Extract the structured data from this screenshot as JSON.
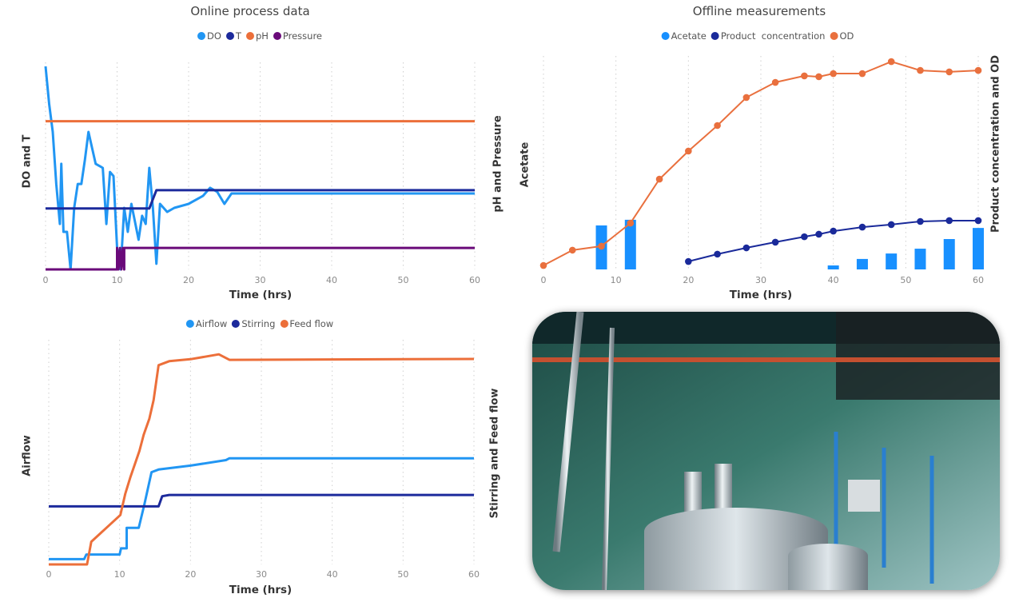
{
  "chart_data": [
    {
      "type": "line",
      "title": "Online process data",
      "xlabel": "Time (hrs)",
      "ylabel": "DO and T",
      "ylabel_right": "pH and Pressure",
      "xlim": [
        0,
        60
      ],
      "xticks": [
        "0",
        "10",
        "20",
        "30",
        "40",
        "50",
        "60"
      ],
      "ylim": [
        0,
        100
      ],
      "y_tick_labels_shown": false,
      "grid": "vertical dotted",
      "legend": "top-center",
      "series": [
        {
          "name": "DO",
          "color": "#2196f3",
          "axis": "left",
          "x": [
            0,
            0.5,
            1,
            1.5,
            2,
            2.2,
            2.5,
            3,
            3.5,
            4,
            4.5,
            5,
            5.5,
            6,
            6.5,
            7,
            8,
            8.5,
            9,
            9.5,
            10,
            10.5,
            11,
            11.5,
            12,
            13,
            13.5,
            14,
            14.5,
            15,
            15.5,
            16,
            17,
            18,
            20,
            22,
            23,
            24,
            25,
            26,
            60
          ],
          "y": [
            100,
            81.5,
            67.7,
            42.1,
            22.4,
            52,
            18.5,
            18.5,
            0,
            30.3,
            42.1,
            42.1,
            53.9,
            67.7,
            59.8,
            52,
            50,
            22.4,
            48,
            46,
            10.6,
            0,
            30.3,
            18.5,
            32.3,
            14.6,
            26.4,
            22.4,
            50,
            30.3,
            2.8,
            32.3,
            28.3,
            30.3,
            32.3,
            36.2,
            40.2,
            38.2,
            32.3,
            37.4,
            37.4
          ]
        },
        {
          "name": "T",
          "color": "#1c2a9c",
          "axis": "left",
          "x": [
            0,
            14.5,
            15.5,
            60
          ],
          "y": [
            30,
            30,
            39,
            39
          ]
        },
        {
          "name": "pH",
          "color": "#ec6f3a",
          "axis": "right",
          "x": [
            0,
            60
          ],
          "y": [
            73,
            73
          ]
        },
        {
          "name": "Pressure",
          "color": "#6a0a7a",
          "axis": "right",
          "x": [
            0,
            10,
            10,
            10.2,
            10.4,
            10.6,
            10.8,
            11,
            11,
            60
          ],
          "y": [
            0,
            0,
            10.6,
            0,
            10.6,
            0,
            10.6,
            0,
            10.6,
            10.6
          ]
        }
      ]
    },
    {
      "type": "bar+line",
      "title": "Offline measurements",
      "xlabel": "Time (hrs)",
      "ylabel": "Acetate",
      "ylabel_right": "Product concentration and OD",
      "xlim": [
        0,
        60
      ],
      "xticks": [
        "0",
        "10",
        "20",
        "30",
        "40",
        "50",
        "60"
      ],
      "ylim": [
        0,
        100
      ],
      "y_tick_labels_shown": false,
      "grid": "vertical dotted",
      "legend": "top-center",
      "series": [
        {
          "name": "Acetate",
          "kind": "bar",
          "color": "#1890ff",
          "axis": "left",
          "x": [
            8,
            12,
            40,
            44,
            48,
            52,
            56,
            60
          ],
          "y": [
            21,
            23.7,
            1.9,
            5,
            7.6,
            9.9,
            14.5,
            19.8
          ]
        },
        {
          "name": "Product  concentration",
          "kind": "line-markers",
          "color": "#1a2a9a",
          "axis": "right",
          "x": [
            20,
            24,
            28,
            32,
            36,
            38,
            40,
            44,
            48,
            52,
            56,
            60
          ],
          "y": [
            3.8,
            7.3,
            10.3,
            13,
            15.6,
            16.8,
            18.3,
            20.2,
            21.4,
            22.9,
            23.3,
            23.3
          ]
        },
        {
          "name": "OD",
          "kind": "line-markers",
          "color": "#e9703e",
          "axis": "right",
          "x": [
            0,
            4,
            8,
            12,
            16,
            20,
            24,
            28,
            32,
            36,
            38,
            40,
            44,
            48,
            52,
            56,
            60
          ],
          "y": [
            1.9,
            9.2,
            11.1,
            22.1,
            43.1,
            56.5,
            68.7,
            82.1,
            89.3,
            92.4,
            92,
            93.5,
            93.5,
            99.2,
            95,
            94.3,
            95
          ]
        }
      ]
    },
    {
      "type": "line",
      "title": "",
      "xlabel": "Time (hrs)",
      "ylabel": "Airflow",
      "ylabel_right": "Stirring and Feed flow",
      "xlim": [
        0,
        60
      ],
      "xticks": [
        "0",
        "10",
        "20",
        "30",
        "40",
        "50",
        "60"
      ],
      "ylim": [
        0,
        100
      ],
      "y_tick_labels_shown": false,
      "grid": "vertical dotted",
      "legend": "top-center",
      "series": [
        {
          "name": "Airflow",
          "color": "#2196f3",
          "axis": "left",
          "x": [
            0,
            5,
            5.3,
            10,
            10.2,
            11,
            11,
            12.7,
            13.5,
            14.5,
            15.5,
            20,
            25,
            25.5,
            60
          ],
          "y": [
            2.4,
            2.4,
            4.5,
            4.5,
            7.3,
            7.3,
            16.6,
            16.6,
            27.3,
            41.8,
            43,
            44.8,
            47.3,
            48.1,
            48.1
          ]
        },
        {
          "name": "Stirring",
          "color": "#1c2a9c",
          "axis": "right",
          "x": [
            0,
            15.5,
            16,
            17,
            60
          ],
          "y": [
            26.3,
            26.3,
            30.9,
            31.5,
            31.5
          ]
        },
        {
          "name": "Feed flow",
          "color": "#ec6f3a",
          "axis": "right",
          "x": [
            0,
            5.4,
            6,
            10.1,
            10.8,
            11.5,
            12.8,
            13.4,
            14.2,
            14.8,
            15.5,
            17,
            20,
            24,
            25.5,
            60
          ],
          "y": [
            0,
            0,
            10.3,
            22.4,
            32.1,
            39.4,
            51.5,
            58.8,
            66.1,
            74.5,
            90.3,
            92.1,
            93,
            95.2,
            92.7,
            93.1
          ]
        }
      ]
    }
  ],
  "photo": {
    "subject": "bioreactor-plant-photo"
  }
}
